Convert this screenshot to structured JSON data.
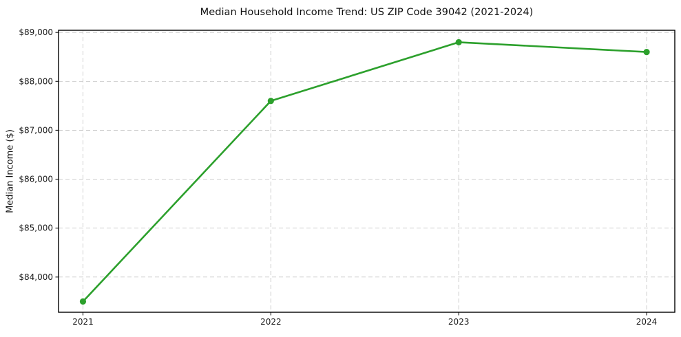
{
  "chart_data": {
    "type": "line",
    "title": "Median Household Income Trend: US ZIP Code 39042 (2021-2024)",
    "xlabel": "",
    "ylabel": "Median Income ($)",
    "x": [
      2021,
      2022,
      2023,
      2024
    ],
    "x_tick_labels": [
      "2021",
      "2022",
      "2023",
      "2024"
    ],
    "series": [
      {
        "name": "Median Household Income",
        "values": [
          83500,
          87600,
          88800,
          88600
        ]
      }
    ],
    "y_ticks": [
      84000,
      85000,
      86000,
      87000,
      88000,
      89000
    ],
    "y_tick_labels": [
      "$84,000",
      "$85,000",
      "$86,000",
      "$87,000",
      "$88,000",
      "$89,000"
    ],
    "xlim": [
      2020.87,
      2024.15
    ],
    "ylim": [
      83280,
      89045
    ],
    "grid": true,
    "legend": "none",
    "line_color": "#2ca02c",
    "marker": "circle",
    "marker_size": 4.6,
    "background": "#ffffff",
    "grid_color": "#c9c9c9",
    "text_color": "#111111"
  }
}
